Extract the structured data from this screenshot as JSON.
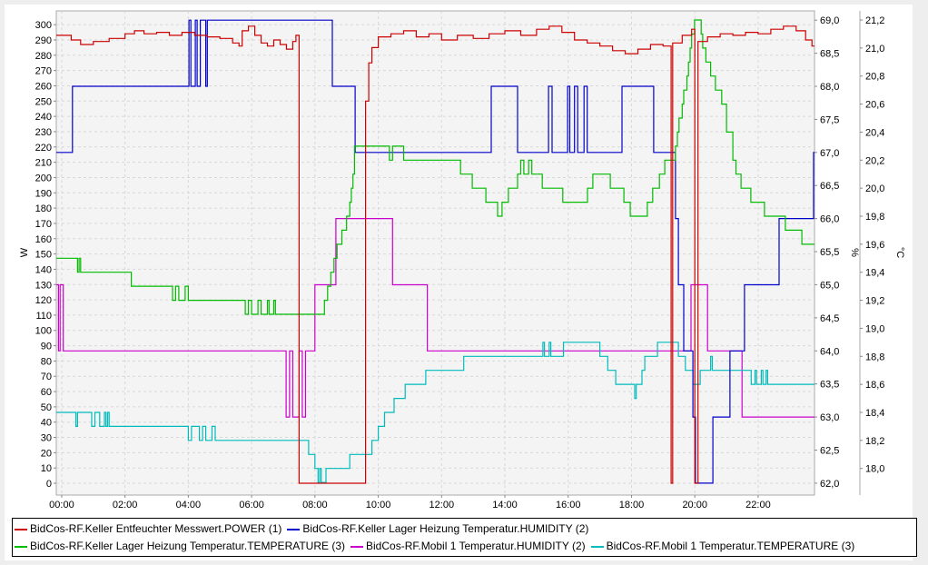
{
  "chart_data": {
    "type": "line",
    "step": true,
    "grid": true,
    "legend_placement": "bottom",
    "x_axis": {
      "unit": "hours",
      "range": [
        -0.17,
        23.78
      ],
      "tick_labels": [
        "00:00",
        "02:00",
        "04:00",
        "06:00",
        "08:00",
        "10:00",
        "12:00",
        "14:00",
        "16:00",
        "18:00",
        "20:00",
        "22:00"
      ]
    },
    "y_axes": {
      "W": {
        "label": "W",
        "side": "left",
        "range": [
          -7.7,
          309
        ],
        "ticks": [
          0,
          10,
          20,
          30,
          40,
          50,
          60,
          70,
          80,
          90,
          100,
          110,
          120,
          130,
          140,
          150,
          160,
          170,
          180,
          190,
          200,
          210,
          220,
          230,
          240,
          250,
          260,
          270,
          280,
          290,
          300
        ],
        "tick_labels": [
          "0",
          "10",
          "20",
          "30",
          "40",
          "50",
          "60",
          "70",
          "80",
          "90",
          "100",
          "110",
          "120",
          "130",
          "140",
          "150",
          "160",
          "170",
          "180",
          "190",
          "200",
          "210",
          "220",
          "230",
          "240",
          "250",
          "260",
          "270",
          "280",
          "290",
          "300"
        ]
      },
      "%": {
        "label": "%",
        "side": "right",
        "range": [
          61.82,
          69.14
        ],
        "ticks": [
          62,
          62.5,
          63,
          63.5,
          64,
          64.5,
          65,
          65.5,
          66,
          66.5,
          67,
          67.5,
          68,
          68.5,
          69
        ],
        "tick_labels": [
          "62,0",
          "62,5",
          "63,0",
          "63,5",
          "64,0",
          "64,5",
          "65,0",
          "65,5",
          "66,0",
          "66,5",
          "67,0",
          "67,5",
          "68,0",
          "68,5",
          "69,0"
        ]
      },
      "°C": {
        "label": "°C",
        "side": "right",
        "range": [
          17.81,
          21.265
        ],
        "ticks": [
          18,
          18.2,
          18.4,
          18.6,
          18.8,
          19,
          19.2,
          19.4,
          19.6,
          19.8,
          20,
          20.2,
          20.4,
          20.6,
          20.8,
          21,
          21.2
        ],
        "tick_labels": [
          "18,0",
          "18,2",
          "18,4",
          "18,6",
          "18,8",
          "19,0",
          "19,2",
          "19,4",
          "19,6",
          "19,8",
          "20,0",
          "20,2",
          "20,4",
          "20,6",
          "20,8",
          "21,0",
          "21,2"
        ]
      }
    },
    "series": [
      {
        "name": "BidCos-RF.Keller Entfeuchter Messwert.POWER (1)",
        "axis": "W",
        "color": "#cc0000",
        "points": [
          [
            -0.17,
            293
          ],
          [
            0.3,
            290
          ],
          [
            0.6,
            287
          ],
          [
            1.0,
            289
          ],
          [
            1.5,
            291
          ],
          [
            2.0,
            294
          ],
          [
            2.3,
            296
          ],
          [
            2.6,
            294
          ],
          [
            3.0,
            295
          ],
          [
            3.4,
            293
          ],
          [
            3.8,
            295
          ],
          [
            4.2,
            293
          ],
          [
            4.6,
            292
          ],
          [
            5.0,
            291
          ],
          [
            5.4,
            288
          ],
          [
            5.6,
            286
          ],
          [
            5.7,
            296
          ],
          [
            5.9,
            299
          ],
          [
            6.1,
            293
          ],
          [
            6.3,
            288
          ],
          [
            6.5,
            286
          ],
          [
            6.7,
            290
          ],
          [
            6.9,
            287
          ],
          [
            7.1,
            284
          ],
          [
            7.3,
            289
          ],
          [
            7.4,
            293
          ],
          [
            7.5,
            0
          ],
          [
            9.6,
            250
          ],
          [
            9.7,
            275
          ],
          [
            9.8,
            285
          ],
          [
            10.0,
            292
          ],
          [
            10.4,
            294
          ],
          [
            10.8,
            296
          ],
          [
            11.2,
            292
          ],
          [
            11.6,
            294
          ],
          [
            12.0,
            290
          ],
          [
            12.5,
            293
          ],
          [
            13.0,
            291
          ],
          [
            13.5,
            294
          ],
          [
            14.0,
            296
          ],
          [
            14.5,
            293
          ],
          [
            15.0,
            297
          ],
          [
            15.4,
            299
          ],
          [
            15.8,
            295
          ],
          [
            16.2,
            290
          ],
          [
            16.6,
            288
          ],
          [
            17.0,
            286
          ],
          [
            17.4,
            283
          ],
          [
            17.8,
            281
          ],
          [
            18.2,
            284
          ],
          [
            18.6,
            287
          ],
          [
            19.0,
            286
          ],
          [
            19.25,
            0
          ],
          [
            19.3,
            288
          ],
          [
            19.6,
            293
          ],
          [
            19.9,
            297
          ],
          [
            20.0,
            0
          ],
          [
            20.1,
            289
          ],
          [
            20.4,
            292
          ],
          [
            20.8,
            294
          ],
          [
            21.2,
            293
          ],
          [
            21.6,
            295
          ],
          [
            22.0,
            294
          ],
          [
            22.4,
            297
          ],
          [
            22.8,
            299
          ],
          [
            23.2,
            296
          ],
          [
            23.5,
            290
          ],
          [
            23.7,
            286
          ]
        ]
      },
      {
        "name": "BidCos-RF.Keller Lager Heizung Temperatur.HUMIDITY (2)",
        "axis": "%",
        "color": "#0000cc",
        "points": [
          [
            -0.17,
            67
          ],
          [
            0.34,
            68
          ],
          [
            4.02,
            69
          ],
          [
            4.08,
            68
          ],
          [
            4.22,
            69
          ],
          [
            4.28,
            68
          ],
          [
            4.38,
            69
          ],
          [
            4.55,
            68
          ],
          [
            4.6,
            69
          ],
          [
            8.55,
            68
          ],
          [
            9.27,
            67
          ],
          [
            13.57,
            68
          ],
          [
            14.4,
            67
          ],
          [
            15.38,
            68
          ],
          [
            15.49,
            67
          ],
          [
            15.98,
            68
          ],
          [
            16.05,
            67
          ],
          [
            16.2,
            68
          ],
          [
            16.3,
            67
          ],
          [
            16.5,
            68
          ],
          [
            16.6,
            67
          ],
          [
            17.7,
            68
          ],
          [
            18.7,
            67
          ],
          [
            19.39,
            66
          ],
          [
            19.48,
            65
          ],
          [
            19.65,
            64
          ],
          [
            19.94,
            63
          ],
          [
            20.02,
            62
          ],
          [
            20.57,
            63
          ],
          [
            21.11,
            64
          ],
          [
            21.57,
            65
          ],
          [
            22.66,
            66
          ],
          [
            23.75,
            67
          ]
        ]
      },
      {
        "name": "BidCos-RF.Keller Lager Heizung Temperatur.TEMPERATURE (3)",
        "axis": "°C",
        "color": "#00bb00",
        "points": [
          [
            -0.17,
            19.5
          ],
          [
            0.5,
            19.4
          ],
          [
            0.55,
            19.5
          ],
          [
            0.6,
            19.4
          ],
          [
            2.2,
            19.3
          ],
          [
            3.5,
            19.2
          ],
          [
            3.6,
            19.3
          ],
          [
            3.7,
            19.2
          ],
          [
            3.9,
            19.3
          ],
          [
            4.0,
            19.2
          ],
          [
            5.8,
            19.1
          ],
          [
            5.9,
            19.2
          ],
          [
            6.0,
            19.1
          ],
          [
            6.2,
            19.2
          ],
          [
            6.3,
            19.1
          ],
          [
            6.5,
            19.2
          ],
          [
            6.55,
            19.1
          ],
          [
            6.7,
            19.2
          ],
          [
            6.75,
            19.1
          ],
          [
            8.3,
            19.2
          ],
          [
            8.4,
            19.3
          ],
          [
            8.5,
            19.4
          ],
          [
            8.6,
            19.5
          ],
          [
            8.7,
            19.6
          ],
          [
            8.85,
            19.7
          ],
          [
            9.0,
            19.8
          ],
          [
            9.1,
            19.9
          ],
          [
            9.15,
            20.0
          ],
          [
            9.2,
            20.1
          ],
          [
            9.25,
            20.3
          ],
          [
            10.35,
            20.2
          ],
          [
            10.45,
            20.3
          ],
          [
            10.8,
            20.2
          ],
          [
            12.6,
            20.1
          ],
          [
            12.97,
            20.0
          ],
          [
            13.4,
            19.9
          ],
          [
            13.77,
            19.8
          ],
          [
            13.91,
            19.9
          ],
          [
            14.11,
            20.0
          ],
          [
            14.4,
            20.1
          ],
          [
            14.5,
            20.2
          ],
          [
            14.6,
            20.1
          ],
          [
            14.75,
            20.2
          ],
          [
            14.85,
            20.1
          ],
          [
            15.18,
            20.0
          ],
          [
            15.83,
            19.9
          ],
          [
            16.61,
            20.0
          ],
          [
            16.78,
            20.1
          ],
          [
            17.33,
            20.0
          ],
          [
            17.76,
            19.9
          ],
          [
            17.96,
            19.8
          ],
          [
            18.5,
            19.9
          ],
          [
            18.67,
            20.0
          ],
          [
            18.88,
            20.1
          ],
          [
            19.05,
            20.2
          ],
          [
            19.39,
            20.3
          ],
          [
            19.45,
            20.4
          ],
          [
            19.5,
            20.5
          ],
          [
            19.6,
            20.6
          ],
          [
            19.65,
            20.7
          ],
          [
            19.75,
            20.8
          ],
          [
            19.8,
            20.9
          ],
          [
            19.85,
            21.0
          ],
          [
            19.9,
            21.1
          ],
          [
            19.99,
            21.2
          ],
          [
            20.2,
            21.1
          ],
          [
            20.25,
            21.0
          ],
          [
            20.35,
            20.9
          ],
          [
            20.5,
            20.8
          ],
          [
            20.65,
            20.7
          ],
          [
            20.85,
            20.6
          ],
          [
            21.0,
            20.4
          ],
          [
            21.2,
            20.2
          ],
          [
            21.3,
            20.1
          ],
          [
            21.46,
            20.0
          ],
          [
            21.77,
            19.9
          ],
          [
            22.2,
            19.8
          ],
          [
            22.86,
            19.7
          ],
          [
            23.38,
            19.6
          ]
        ]
      },
      {
        "name": "BidCos-RF.Mobil 1 Temperatur.HUMIDITY (2)",
        "axis": "%",
        "color": "#cc00cc",
        "points": [
          [
            -0.17,
            65
          ],
          [
            -0.1,
            64
          ],
          [
            -0.05,
            65
          ],
          [
            0.05,
            64
          ],
          [
            7.09,
            63
          ],
          [
            7.2,
            64
          ],
          [
            7.3,
            63
          ],
          [
            7.5,
            64
          ],
          [
            7.6,
            63
          ],
          [
            7.7,
            64
          ],
          [
            8.0,
            65
          ],
          [
            8.66,
            66
          ],
          [
            10.45,
            65
          ],
          [
            11.55,
            64
          ],
          [
            19.88,
            65
          ],
          [
            20.4,
            64
          ],
          [
            21.49,
            63
          ]
        ]
      },
      {
        "name": "BidCos-RF.Mobil 1 Temperatur.TEMPERATURE (3)",
        "axis": "°C",
        "color": "#00bbbb",
        "points": [
          [
            -0.17,
            18.4
          ],
          [
            0.45,
            18.3
          ],
          [
            0.5,
            18.4
          ],
          [
            0.95,
            18.3
          ],
          [
            1.05,
            18.4
          ],
          [
            1.2,
            18.3
          ],
          [
            1.35,
            18.4
          ],
          [
            1.4,
            18.3
          ],
          [
            1.45,
            18.4
          ],
          [
            1.5,
            18.3
          ],
          [
            4.0,
            18.2
          ],
          [
            4.1,
            18.3
          ],
          [
            4.35,
            18.2
          ],
          [
            4.45,
            18.3
          ],
          [
            4.55,
            18.2
          ],
          [
            4.75,
            18.3
          ],
          [
            4.85,
            18.2
          ],
          [
            7.8,
            18.1
          ],
          [
            8.0,
            18.0
          ],
          [
            8.1,
            17.9
          ],
          [
            8.15,
            18.0
          ],
          [
            8.2,
            17.9
          ],
          [
            8.35,
            18.0
          ],
          [
            9.1,
            18.1
          ],
          [
            9.8,
            18.2
          ],
          [
            10.0,
            18.3
          ],
          [
            10.2,
            18.4
          ],
          [
            10.5,
            18.5
          ],
          [
            10.85,
            18.6
          ],
          [
            11.5,
            18.7
          ],
          [
            12.7,
            18.8
          ],
          [
            15.2,
            18.9
          ],
          [
            15.25,
            18.8
          ],
          [
            15.4,
            18.9
          ],
          [
            15.45,
            18.8
          ],
          [
            15.85,
            18.9
          ],
          [
            17.0,
            18.8
          ],
          [
            17.25,
            18.7
          ],
          [
            17.5,
            18.6
          ],
          [
            18.1,
            18.5
          ],
          [
            18.15,
            18.6
          ],
          [
            18.33,
            18.7
          ],
          [
            18.42,
            18.8
          ],
          [
            18.82,
            18.9
          ],
          [
            19.48,
            18.8
          ],
          [
            19.7,
            18.7
          ],
          [
            19.94,
            18.6
          ],
          [
            20.17,
            18.7
          ],
          [
            20.5,
            18.8
          ],
          [
            20.55,
            18.7
          ],
          [
            21.78,
            18.6
          ],
          [
            21.9,
            18.7
          ],
          [
            21.95,
            18.6
          ],
          [
            22.1,
            18.7
          ],
          [
            22.15,
            18.6
          ],
          [
            22.25,
            18.7
          ],
          [
            22.3,
            18.6
          ]
        ]
      }
    ]
  }
}
